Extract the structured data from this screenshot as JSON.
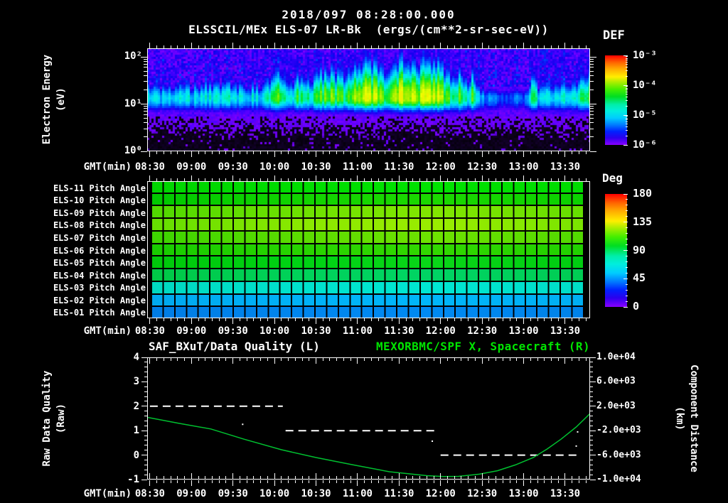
{
  "header": {
    "datetime": "2018/097 08:28:00.000",
    "instrument_title": "ELSSCIL/MEx ELS-07 LR-Bk  (ergs/(cm**2-sr-sec-eV))"
  },
  "time_axis": {
    "label": "GMT(min)",
    "tick_labels": [
      "08:30",
      "09:00",
      "09:30",
      "10:00",
      "10:30",
      "11:00",
      "11:30",
      "12:00",
      "12:30",
      "13:00",
      "13:30"
    ],
    "tick_minutes": [
      2,
      32,
      62,
      92,
      122,
      152,
      182,
      212,
      242,
      272,
      302
    ],
    "start": "08:28",
    "end": "13:48",
    "span_minutes": 320,
    "minor_step_minutes": 5
  },
  "panels": {
    "spectrogram": {
      "ylabel_line1": "Electron Energy",
      "ylabel_line2": "(eV)",
      "ytick_labels": [
        "10²",
        "10¹",
        "10⁰"
      ],
      "ytick_exponents": [
        2,
        1,
        0
      ],
      "colorbar": {
        "title": "DEF",
        "tick_labels": [
          "10⁻³",
          "10⁻⁴",
          "10⁻⁵",
          "10⁻⁶"
        ]
      }
    },
    "pitch": {
      "colorbar": {
        "title": "Deg",
        "tick_labels": [
          "180",
          "135",
          "90",
          "45",
          "0"
        ],
        "tick_values": [
          180,
          135,
          90,
          45,
          0
        ]
      },
      "rows": [
        {
          "label": "ELS-11 Pitch Angle",
          "deg": 95,
          "stops": [
            "#00d400",
            "#00dd00",
            "#00e200",
            "#00db00"
          ]
        },
        {
          "label": "ELS-10 Pitch Angle",
          "deg": 92,
          "stops": [
            "#00c800",
            "#12d300",
            "#1cd800",
            "#0ad000"
          ]
        },
        {
          "label": "ELS-09 Pitch Angle",
          "deg": 115,
          "stops": [
            "#50d800",
            "#6ee200",
            "#82e600",
            "#64de00"
          ]
        },
        {
          "label": "ELS-08 Pitch Angle",
          "deg": 122,
          "stops": [
            "#64de00",
            "#8ae800",
            "#9aec00",
            "#78e400"
          ]
        },
        {
          "label": "ELS-07 Pitch Angle",
          "deg": 112,
          "stops": [
            "#3cd400",
            "#5cdc00",
            "#6ee200",
            "#50d800"
          ]
        },
        {
          "label": "ELS-06 Pitch Angle",
          "deg": 103,
          "stops": [
            "#18cc00",
            "#28d400",
            "#32d800",
            "#20d000"
          ]
        },
        {
          "label": "ELS-05 Pitch Angle",
          "deg": 97,
          "stops": [
            "#00c80a",
            "#00d214",
            "#0ad618",
            "#00cc10"
          ]
        },
        {
          "label": "ELS-04 Pitch Angle",
          "deg": 88,
          "stops": [
            "#00c846",
            "#00d25a",
            "#00d464",
            "#00cc52"
          ]
        },
        {
          "label": "ELS-03 Pitch Angle",
          "deg": 70,
          "stops": [
            "#00d8c0",
            "#00e2cc",
            "#00e6d2",
            "#00dcc6"
          ]
        },
        {
          "label": "ELS-02 Pitch Angle",
          "deg": 57,
          "stops": [
            "#00a8ee",
            "#00b2f8",
            "#00b6fa",
            "#00aef2"
          ]
        },
        {
          "label": "ELS-01 Pitch Angle",
          "deg": 47,
          "stops": [
            "#007ce4",
            "#0086ee",
            "#008af2",
            "#0082e8"
          ]
        }
      ]
    },
    "quality": {
      "title_left": "SAF_BXuT/Data Quality (L)",
      "title_right": "MEXORBMC/SPF X, Spacecraft (R)",
      "title_right_color": "#00e400",
      "curve_color": "#00c030",
      "ylabel_left_line1": "Raw Data Quality",
      "ylabel_left_line2": "(Raw)",
      "ylabel_right_line1": "Component Distance",
      "ylabel_right_line2": "(km)",
      "ytick_labels_left": [
        "4",
        "3",
        "2",
        "1",
        "0",
        "-1"
      ],
      "ytick_values_left": [
        4,
        3,
        2,
        1,
        0,
        -1
      ],
      "ytick_labels_right": [
        "1.0e+04",
        "6.0e+03",
        "2.0e+03",
        "-2.0e+03",
        "-6.0e+03",
        "-1.0e+04"
      ],
      "ytick_values_right_km": [
        10000,
        6000,
        2000,
        -2000,
        -6000,
        -10000
      ]
    }
  },
  "chart_data": [
    {
      "type": "heatmap",
      "title": "ELSSCIL/MEx ELS-07 LR-Bk electron energy spectrogram",
      "x_range": [
        "08:28",
        "13:48"
      ],
      "ylabel": "Electron Energy (eV)",
      "y_log_range_ev": [
        1,
        150
      ],
      "z_label": "DEF (ergs/(cm**2-sr-sec-eV))",
      "z_log_range": [
        1e-06,
        0.001
      ],
      "band_center_ev": 13,
      "band_intensity_envelope": {
        "t_minutes": [
          0,
          15,
          30,
          45,
          55,
          65,
          75,
          85,
          90,
          97,
          103,
          110,
          118,
          126,
          133,
          140,
          148,
          156,
          164,
          171,
          179,
          187,
          195,
          203,
          210,
          217,
          222,
          227,
          231,
          235,
          239,
          244,
          250,
          257,
          263,
          270,
          276,
          279,
          282,
          287,
          294,
          301,
          308,
          314,
          320
        ],
        "intensity": [
          0.57,
          0.55,
          0.56,
          0.58,
          0.62,
          0.56,
          0.57,
          0.6,
          0.68,
          0.74,
          0.6,
          0.72,
          0.64,
          0.76,
          0.8,
          0.7,
          0.78,
          0.86,
          0.88,
          0.78,
          0.88,
          0.92,
          0.84,
          0.9,
          0.88,
          0.74,
          0.68,
          0.8,
          0.58,
          0.76,
          0.54,
          0.48,
          0.42,
          0.44,
          0.41,
          0.43,
          0.46,
          0.82,
          0.58,
          0.54,
          0.56,
          0.58,
          0.63,
          0.7,
          0.73
        ]
      },
      "features": [
        "persistent cyan flux band near 8-25 eV across whole interval",
        "bright green/yellow-green patches 10:00-12:10 extending up to ~60 eV",
        "narrow vertical streaks 12:10-12:30",
        "dim blue interval 12:35-13:05 with bright spike column near 13:05",
        "blue/violet noisy background above 30 eV, dark speckled background below 4 eV"
      ],
      "colormap": {
        "positions": [
          0,
          0.05,
          0.1,
          0.16,
          0.24,
          0.32,
          0.4,
          0.48,
          0.55,
          0.6,
          0.66,
          0.72,
          0.78,
          0.85,
          0.92,
          1
        ],
        "colors": [
          "#000000",
          "#12002a",
          "#4b00c8",
          "#7a00ff",
          "#4400ff",
          "#1100ee",
          "#0044ff",
          "#0090ff",
          "#00d0ff",
          "#00f0e8",
          "#00f0a0",
          "#00e830",
          "#55ee00",
          "#aaf000",
          "#eeff00",
          "#ff8800"
        ]
      }
    },
    {
      "type": "heatmap",
      "title": "ELS anode pitch angles",
      "rows": [
        "ELS-11",
        "ELS-10",
        "ELS-09",
        "ELS-08",
        "ELS-07",
        "ELS-06",
        "ELS-05",
        "ELS-04",
        "ELS-03",
        "ELS-02",
        "ELS-01"
      ],
      "approx_pitch_angle_deg": [
        95,
        92,
        115,
        122,
        112,
        103,
        97,
        88,
        70,
        57,
        47
      ],
      "scale_deg": [
        0,
        180
      ]
    },
    {
      "type": "line",
      "ylim_left": [
        -1,
        4
      ],
      "ylim_right_km": [
        -10000,
        10000
      ],
      "series": [
        {
          "name": "SAF_BXuT/Data Quality (L)",
          "style": "dashed-white",
          "axis": "left",
          "segments": [
            {
              "t0_min": 2,
              "t1_min": 98,
              "value": 2
            },
            {
              "t0_min": 100,
              "t1_min": 210,
              "value": 1
            },
            {
              "t0_min": 212,
              "t1_min": 313,
              "value": 0
            }
          ],
          "stray_points": [
            {
              "t_min": 69,
              "value": 1.26
            },
            {
              "t_min": 206,
              "value": 0.57
            },
            {
              "t_min": 311,
              "value": 0.95
            },
            {
              "t_min": 310,
              "value": 0.37
            }
          ]
        },
        {
          "name": "MEXORBMC/SPF X, Spacecraft (R)",
          "style": "solid-green",
          "axis": "right",
          "points_t_min": [
            0,
            23,
            46,
            70,
            97,
            122,
            148,
            175,
            202,
            214,
            225,
            240,
            253,
            266,
            279,
            289,
            299,
            310,
            320
          ],
          "points_km": [
            200,
            -800,
            -1720,
            -3400,
            -5120,
            -6400,
            -7560,
            -8720,
            -9360,
            -9500,
            -9480,
            -9120,
            -8560,
            -7600,
            -6400,
            -5000,
            -3400,
            -1400,
            800
          ]
        }
      ]
    }
  ]
}
